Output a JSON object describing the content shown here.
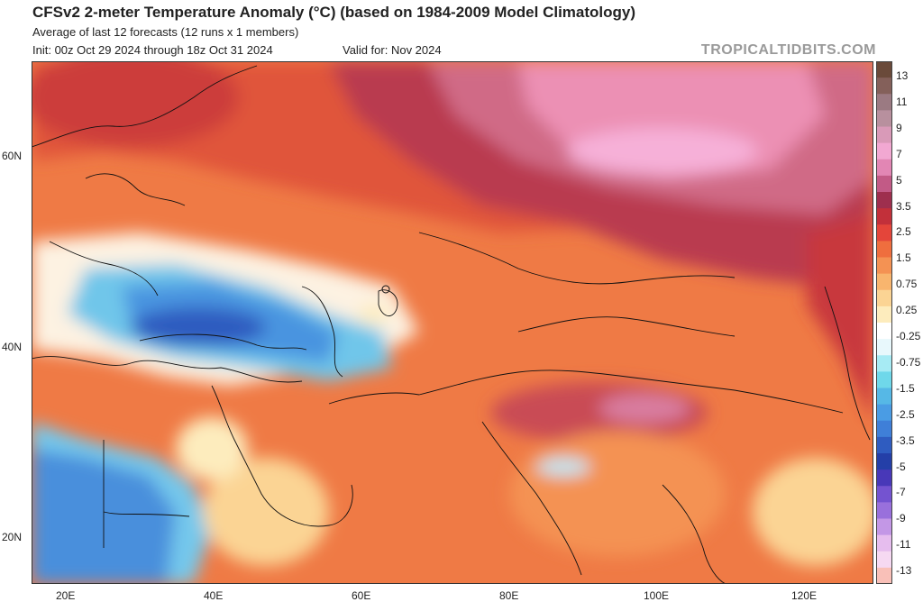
{
  "header": {
    "title": "CFSv2 2-meter Temperature Anomaly (°C) (based on 1984-2009 Model Climatology)",
    "subtitle": "Average of last 12 forecasts (12 runs x 1 members)",
    "init": "Init: 00z Oct 29 2024 through 18z Oct 31 2024",
    "valid": "Valid for: Nov 2024",
    "brand": "TROPICALTIDBITS.COM"
  },
  "axes": {
    "lat_labels": [
      "60N",
      "40N",
      "20N"
    ],
    "lon_labels": [
      "20E",
      "40E",
      "60E",
      "80E",
      "100E",
      "120E"
    ]
  },
  "colorbar": {
    "labels": [
      "13",
      "11",
      "9",
      "7",
      "5",
      "3.5",
      "2.5",
      "1.5",
      "0.75",
      "0.25",
      "-0.25",
      "-0.75",
      "-1.5",
      "-2.5",
      "-3.5",
      "-5",
      "-7",
      "-9",
      "-11",
      "-13"
    ],
    "colors": [
      "#6a4a3a",
      "#84605a",
      "#9b7a82",
      "#b8909e",
      "#d99ab8",
      "#f2a8d2",
      "#e286b4",
      "#c25a86",
      "#9e2f4e",
      "#c2303a",
      "#e4453a",
      "#ef6e3e",
      "#f49253",
      "#f8b56e",
      "#fbd494",
      "#fdecbd",
      "#ffffff",
      "#e8f8fc",
      "#a7ebf4",
      "#6fd8ea",
      "#56b8e6",
      "#4a9ce4",
      "#3f7fd8",
      "#2f5cc0",
      "#243fa8",
      "#4838b8",
      "#7453d0",
      "#9970dc",
      "#c397e6",
      "#e6bdee",
      "#f6d9f2",
      "#f9c0b8"
    ]
  },
  "legend_colors": {
    "warm_extreme": "#6a4a3a",
    "neutral": "#ffffff",
    "cold_extreme": "#f9c0b8"
  }
}
